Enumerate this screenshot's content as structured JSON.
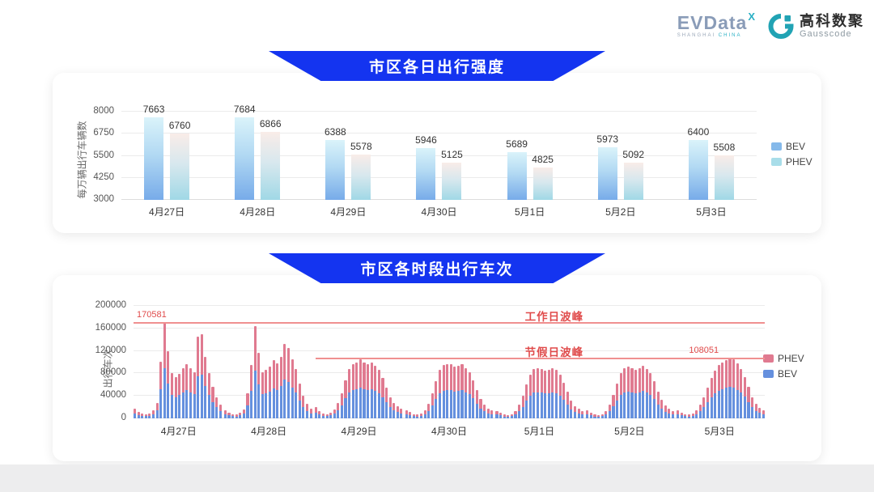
{
  "logo": {
    "evdata": "EVData",
    "evdata_sup": "X",
    "evdata_sub1": "SHANGHAI",
    "evdata_sub2": "CHINA",
    "gausscode_cn": "高科数聚",
    "gausscode_en": "Gausscode"
  },
  "colors": {
    "banner_blue": "#1434f0",
    "annotation_red": "#e04b4b",
    "refline_red": "#f09090",
    "chart1_bev_swatch": "#85b9ea",
    "chart1_phev_swatch": "#a8dde9",
    "chart2_bev": "#6590de",
    "chart2_phev": "#e07a90"
  },
  "chart_data": [
    {
      "type": "bar",
      "title": "市区各日出行强度",
      "ylabel": "每万辆出行车辆数",
      "ylim": [
        3000,
        8000
      ],
      "yticks": [
        3000,
        4250,
        5500,
        6750,
        8000
      ],
      "grid": true,
      "legend_position": "right",
      "categories": [
        "4月27日",
        "4月28日",
        "4月29日",
        "4月30日",
        "5月1日",
        "5月2日",
        "5月3日"
      ],
      "series": [
        {
          "name": "BEV",
          "color": "#85b9ea",
          "values": [
            7663,
            7684,
            6388,
            5946,
            5689,
            5973,
            6400
          ]
        },
        {
          "name": "PHEV",
          "color": "#a8dde9",
          "values": [
            6760,
            6866,
            5578,
            5125,
            4825,
            5092,
            5508
          ]
        }
      ]
    },
    {
      "type": "bar",
      "stacked": true,
      "title": "市区各时段出行车次",
      "ylabel": "出行车次",
      "ylim": [
        0,
        200000
      ],
      "yticks": [
        0,
        40000,
        80000,
        120000,
        160000,
        200000
      ],
      "grid": true,
      "legend_position": "right",
      "hours_per_day": 24,
      "legend": [
        {
          "name": "PHEV",
          "color": "#e07a90"
        },
        {
          "name": "BEV",
          "color": "#6590de"
        }
      ],
      "annotations": {
        "workday_peak_label": "工作日波峰",
        "workday_peak_value": 170581,
        "holiday_peak_label": "节假日波峰",
        "holiday_peak_value": 108051
      },
      "days": [
        {
          "date": "4月27日",
          "bev": [
            8800,
            6200,
            4700,
            4200,
            4700,
            7800,
            14000,
            52500,
            88700,
            62400,
            42100,
            38000,
            41100,
            46800,
            49900,
            46300,
            42600,
            75400,
            78000,
            57200,
            41600,
            29100,
            19800,
            12500
          ],
          "phev": [
            8200,
            5800,
            4300,
            3800,
            4300,
            7200,
            13000,
            48500,
            81881,
            57600,
            38900,
            35000,
            37900,
            43200,
            46100,
            42700,
            39400,
            69600,
            72000,
            52800,
            38400,
            26900,
            18200,
            11500
          ]
        },
        {
          "date": "4月28日",
          "bev": [
            7800,
            5200,
            4200,
            3600,
            5200,
            8300,
            23400,
            49400,
            85300,
            60800,
            42600,
            44700,
            47800,
            53600,
            51000,
            57200,
            69200,
            65000,
            54600,
            45800,
            32200,
            20800,
            13500,
            9400
          ],
          "phev": [
            7200,
            4800,
            3800,
            3400,
            4800,
            7700,
            21600,
            45600,
            78700,
            56200,
            39400,
            41300,
            44200,
            49400,
            47000,
            52800,
            63800,
            60000,
            50400,
            42200,
            29800,
            19200,
            12500,
            8600
          ]
        },
        {
          "date": "4月29日",
          "bev": [
            10400,
            6800,
            4700,
            4200,
            5200,
            8300,
            14600,
            23400,
            35400,
            45800,
            49900,
            52000,
            54600,
            51500,
            49900,
            51500,
            48900,
            44700,
            37400,
            28600,
            19800,
            14000,
            10900,
            8800
          ],
          "phev": [
            9600,
            6200,
            4300,
            3800,
            4800,
            7700,
            13400,
            21600,
            32600,
            42200,
            46100,
            48000,
            50400,
            47500,
            46100,
            47500,
            45100,
            41300,
            34600,
            26400,
            18200,
            13000,
            10100,
            8200
          ]
        },
        {
          "date": "4月30日",
          "bev": [
            7800,
            5700,
            4200,
            3600,
            4700,
            7300,
            13500,
            22900,
            34300,
            44700,
            49400,
            50400,
            49900,
            47800,
            48900,
            49900,
            46800,
            42600,
            35400,
            26000,
            17700,
            12500,
            9400,
            7300
          ],
          "phev": [
            7200,
            5300,
            3800,
            3400,
            4300,
            6700,
            12500,
            21100,
            31700,
            41300,
            45600,
            46600,
            46100,
            44200,
            45100,
            46100,
            43200,
            39400,
            32600,
            24000,
            16300,
            11500,
            8600,
            6700
          ]
        },
        {
          "date": "5月1日",
          "bev": [
            6800,
            5200,
            3600,
            3100,
            4200,
            6800,
            12500,
            20800,
            31200,
            40600,
            45800,
            46800,
            45800,
            44200,
            45200,
            46800,
            44700,
            40600,
            33300,
            24400,
            16600,
            11400,
            8800,
            6800
          ],
          "phev": [
            6200,
            4800,
            3400,
            2900,
            3800,
            6200,
            11500,
            19200,
            28800,
            37400,
            42200,
            43200,
            42200,
            40800,
            41800,
            43200,
            41300,
            37400,
            30700,
            22600,
            15400,
            10600,
            8200,
            6200
          ]
        },
        {
          "date": "5月2日",
          "bev": [
            7300,
            5200,
            3600,
            3100,
            4200,
            6800,
            13000,
            21800,
            32200,
            41600,
            46300,
            47800,
            46800,
            45200,
            46300,
            48400,
            45800,
            41600,
            34300,
            25000,
            17200,
            12000,
            8800,
            6800
          ],
          "phev": [
            6700,
            4800,
            3400,
            2900,
            3800,
            6200,
            12000,
            20200,
            29800,
            38400,
            42700,
            44200,
            43200,
            41800,
            42700,
            44600,
            42200,
            38400,
            31700,
            23000,
            15800,
            11000,
            8200,
            6200
          ]
        },
        {
          "date": "5月3日",
          "bev": [
            7300,
            5200,
            4200,
            3600,
            4700,
            7300,
            12500,
            19800,
            28600,
            37400,
            44200,
            49400,
            52000,
            54100,
            56200,
            54600,
            51000,
            45800,
            38500,
            29100,
            19800,
            13500,
            9900,
            7800
          ],
          "phev": [
            6700,
            4800,
            3800,
            3400,
            4300,
            6700,
            11500,
            18200,
            26400,
            34600,
            40800,
            45600,
            48000,
            49900,
            51851,
            50400,
            47000,
            42200,
            35500,
            26900,
            18200,
            12500,
            9100,
            7200
          ]
        }
      ]
    }
  ]
}
